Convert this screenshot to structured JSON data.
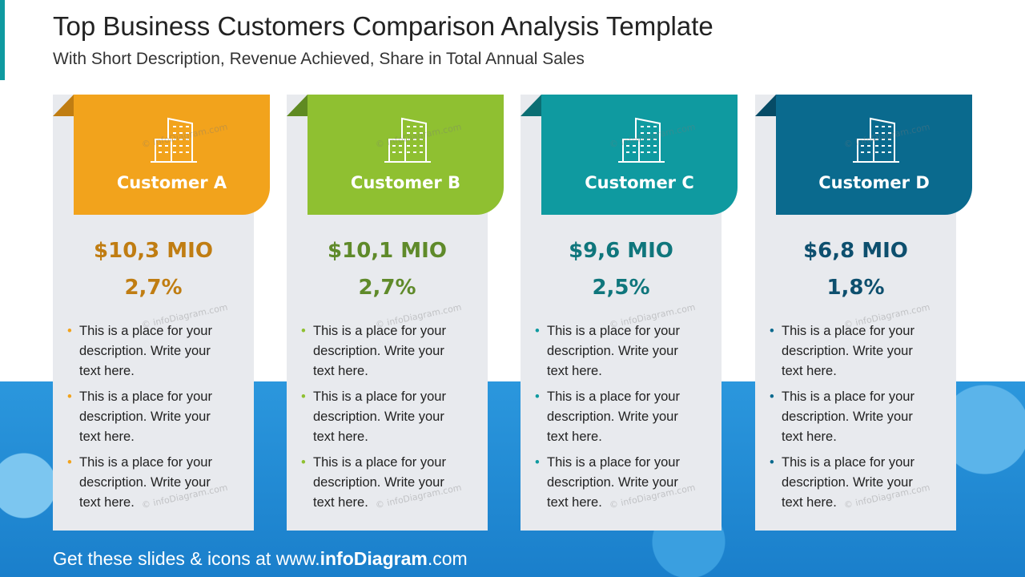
{
  "header": {
    "title": "Top Business Customers Comparison Analysis Template",
    "subtitle": "With Short Description, Revenue Achieved, Share in Total Annual Sales"
  },
  "cards": [
    {
      "name": "Customer A",
      "revenue": "$10,3 MIO",
      "share": "2,7%",
      "color": "#f2a31c",
      "fold": "#c07d12",
      "text_color": "#c07d12",
      "bullets": [
        "This is a place for your description. Write your text here.",
        "This is a place for your description. Write your text here.",
        "This is a place for your description. Write your text here."
      ]
    },
    {
      "name": "Customer B",
      "revenue": "$10,1 MIO",
      "share": "2,7%",
      "color": "#8fc031",
      "fold": "#5f8a22",
      "text_color": "#5f8a2a",
      "bullets": [
        "This is a place for your description. Write your text here.",
        "This is a place for your description. Write your text here.",
        "This is a place for your description. Write your text here."
      ]
    },
    {
      "name": "Customer C",
      "revenue": "$9,6 MIO",
      "share": "2,5%",
      "color": "#0f9aa0",
      "fold": "#0b6e73",
      "text_color": "#0f767c",
      "bullets": [
        "This is a place for your description. Write your text here.",
        "This is a place for your description. Write your text here.",
        "This is a place for your description. Write your text here."
      ]
    },
    {
      "name": "Customer D",
      "revenue": "$6,8 MIO",
      "share": "1,8%",
      "color": "#0a6a8e",
      "fold": "#064b66",
      "text_color": "#0d4f6e",
      "bullets": [
        "This is a place for your description. Write your text here.",
        "This is a place for your description. Write your text here.",
        "This is a place for your description. Write your text here."
      ]
    }
  ],
  "watermark": "© infoDiagram.com",
  "footer": {
    "prefix": "Get these slides & icons at www.",
    "brand": "infoDiagram",
    "suffix": ".com"
  }
}
